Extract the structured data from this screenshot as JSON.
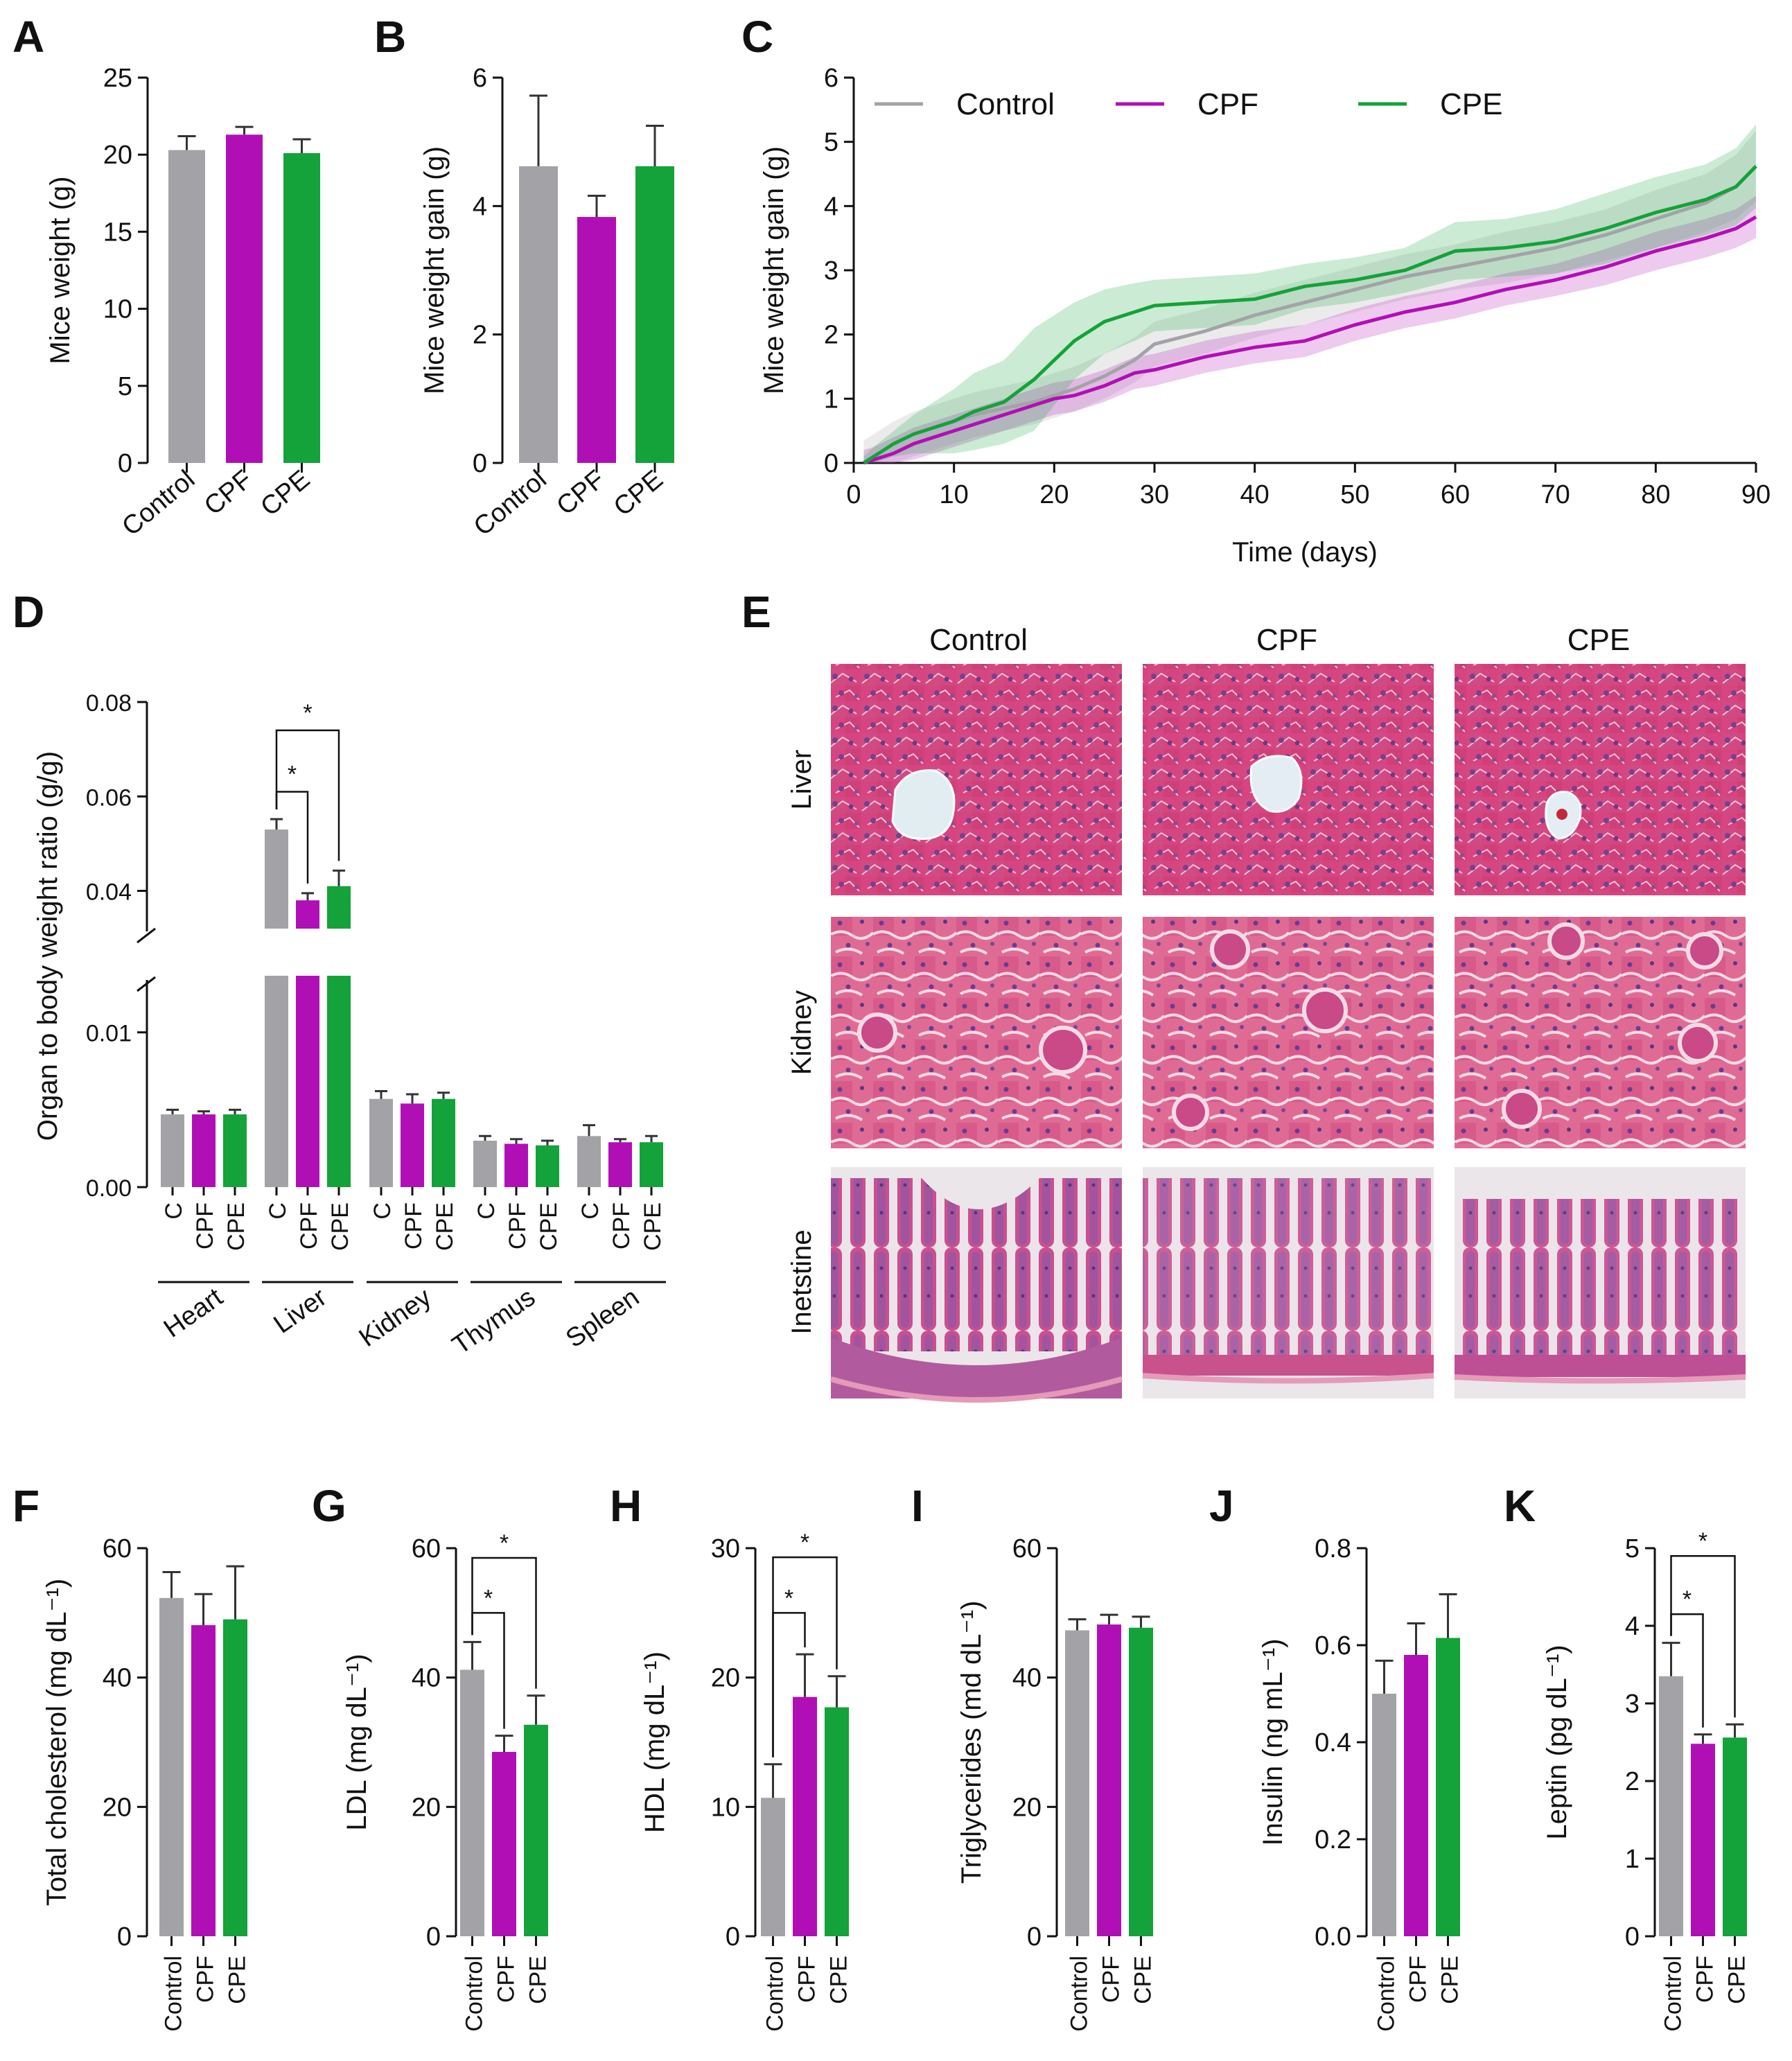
{
  "colors": {
    "control": "#a3a3a7",
    "cpf": "#b10fb6",
    "cpe": "#14a23a",
    "axis": "#111111"
  },
  "groups": [
    "Control",
    "CPF",
    "CPE"
  ],
  "chart_data": [
    {
      "id": "A",
      "panel_label": "A",
      "type": "bar",
      "categories": [
        "Control",
        "CPF",
        "CPE"
      ],
      "values": [
        20.3,
        21.3,
        20.1
      ],
      "errors": [
        0.9,
        0.5,
        0.9
      ],
      "ylabel": "Mice weight (g)",
      "ylim": [
        0,
        25
      ],
      "yticks": [
        0,
        5,
        10,
        15,
        20,
        25
      ],
      "ytick_labels": [
        "0",
        "5",
        "10",
        "15",
        "20",
        "25"
      ]
    },
    {
      "id": "B",
      "panel_label": "B",
      "type": "bar",
      "categories": [
        "Control",
        "CPF",
        "CPE"
      ],
      "values": [
        4.62,
        3.83,
        4.62
      ],
      "errors": [
        1.1,
        0.33,
        0.63
      ],
      "ylabel": "Mice weight gain (g)",
      "ylim": [
        0,
        6
      ],
      "yticks": [
        0,
        2,
        4,
        6
      ],
      "ytick_labels": [
        "0",
        "2",
        "4",
        "6"
      ]
    },
    {
      "id": "C",
      "panel_label": "C",
      "type": "line",
      "xlabel": "Time (days)",
      "ylabel": "Mice weight gain (g)",
      "xlim": [
        0,
        90
      ],
      "ylim": [
        0,
        6
      ],
      "xticks": [
        0,
        10,
        20,
        30,
        40,
        50,
        60,
        70,
        80,
        90
      ],
      "xtick_labels": [
        "0",
        "10",
        "20",
        "30",
        "40",
        "50",
        "60",
        "70",
        "80",
        "90"
      ],
      "yticks": [
        0,
        1,
        2,
        3,
        4,
        5,
        6
      ],
      "ytick_labels": [
        "0",
        "1",
        "2",
        "3",
        "4",
        "5",
        "6"
      ],
      "x": [
        1,
        2,
        4,
        6,
        8,
        10,
        12,
        15,
        18,
        20,
        22,
        25,
        28,
        30,
        35,
        40,
        45,
        50,
        55,
        60,
        65,
        70,
        75,
        80,
        85,
        88,
        90
      ],
      "series": [
        {
          "name": "Control",
          "color_key": "control",
          "values": [
            0,
            0.1,
            0.3,
            0.45,
            0.55,
            0.65,
            0.75,
            0.85,
            0.95,
            1.05,
            1.15,
            1.35,
            1.6,
            1.85,
            2.05,
            2.3,
            2.5,
            2.7,
            2.9,
            3.05,
            3.2,
            3.35,
            3.55,
            3.8,
            4.05,
            4.3,
            4.62
          ],
          "band": [
            0.35,
            0.35,
            0.35,
            0.35,
            0.35,
            0.35,
            0.35,
            0.35,
            0.35,
            0.35,
            0.35,
            0.35,
            0.35,
            0.35,
            0.35,
            0.35,
            0.35,
            0.35,
            0.35,
            0.35,
            0.4,
            0.4,
            0.4,
            0.45,
            0.45,
            0.5,
            0.55
          ]
        },
        {
          "name": "CPF",
          "color_key": "cpf",
          "values": [
            0,
            0.05,
            0.15,
            0.3,
            0.4,
            0.5,
            0.6,
            0.75,
            0.9,
            1.0,
            1.05,
            1.2,
            1.4,
            1.45,
            1.65,
            1.8,
            1.9,
            2.15,
            2.35,
            2.5,
            2.7,
            2.85,
            3.05,
            3.3,
            3.5,
            3.65,
            3.83
          ],
          "band": [
            0.2,
            0.2,
            0.25,
            0.25,
            0.25,
            0.25,
            0.25,
            0.25,
            0.25,
            0.25,
            0.25,
            0.25,
            0.25,
            0.25,
            0.25,
            0.25,
            0.25,
            0.25,
            0.25,
            0.25,
            0.25,
            0.25,
            0.28,
            0.3,
            0.3,
            0.3,
            0.33
          ]
        },
        {
          "name": "CPE",
          "color_key": "cpe",
          "values": [
            0,
            0.1,
            0.3,
            0.45,
            0.55,
            0.65,
            0.8,
            0.95,
            1.3,
            1.6,
            1.9,
            2.2,
            2.35,
            2.45,
            2.5,
            2.55,
            2.75,
            2.85,
            3.0,
            3.3,
            3.35,
            3.45,
            3.65,
            3.9,
            4.1,
            4.3,
            4.62
          ],
          "band": [
            0.1,
            0.15,
            0.2,
            0.3,
            0.4,
            0.5,
            0.6,
            0.65,
            0.8,
            0.7,
            0.6,
            0.5,
            0.45,
            0.4,
            0.4,
            0.4,
            0.35,
            0.35,
            0.35,
            0.45,
            0.45,
            0.5,
            0.55,
            0.55,
            0.55,
            0.6,
            0.65
          ]
        }
      ]
    },
    {
      "id": "D",
      "panel_label": "D",
      "type": "bar",
      "ylabel": "Organ to body weight ratio (g/g)",
      "broken_axis": [
        0.012,
        0.032
      ],
      "ylim": [
        0,
        0.08
      ],
      "yticks": [
        0.0,
        0.01,
        0.04,
        0.06,
        0.08
      ],
      "ytick_labels": [
        "0.00",
        "0.01",
        "0.04",
        "0.06",
        "0.08"
      ],
      "organs": [
        "Heart",
        "Liver",
        "Kidney",
        "Thymus",
        "Spleen"
      ],
      "bar_labels": [
        "C",
        "CPF",
        "CPE"
      ],
      "series": [
        {
          "name": "Control",
          "color_key": "control",
          "values": [
            0.0047,
            0.053,
            0.0057,
            0.003,
            0.0033
          ],
          "errors": [
            0.0003,
            0.0022,
            0.0005,
            0.0003,
            0.0007
          ]
        },
        {
          "name": "CPF",
          "color_key": "cpf",
          "values": [
            0.0047,
            0.038,
            0.0054,
            0.0028,
            0.0029
          ],
          "errors": [
            0.0002,
            0.0015,
            0.0006,
            0.0003,
            0.0002
          ]
        },
        {
          "name": "CPE",
          "color_key": "cpe",
          "values": [
            0.0047,
            0.041,
            0.0057,
            0.0027,
            0.0029
          ],
          "errors": [
            0.0003,
            0.0033,
            0.0004,
            0.0003,
            0.0004
          ]
        }
      ],
      "significance": [
        {
          "organ": "Liver",
          "from": 0,
          "to": 1,
          "y": 0.061,
          "label": "*"
        },
        {
          "organ": "Liver",
          "from": 0,
          "to": 2,
          "y": 0.074,
          "label": "*"
        }
      ]
    },
    {
      "id": "F",
      "panel_label": "F",
      "type": "bar",
      "categories": [
        "Control",
        "CPF",
        "CPE"
      ],
      "values": [
        52.3,
        48.1,
        49.0
      ],
      "errors": [
        4.0,
        4.8,
        8.2
      ],
      "ylabel": "Total cholesterol (mg dL⁻¹)",
      "ylim": [
        0,
        60
      ],
      "yticks": [
        0,
        20,
        40,
        60
      ],
      "ytick_labels": [
        "0",
        "20",
        "40",
        "60"
      ]
    },
    {
      "id": "G",
      "panel_label": "G",
      "type": "bar",
      "categories": [
        "Control",
        "CPF",
        "CPE"
      ],
      "values": [
        41.2,
        28.5,
        32.7
      ],
      "errors": [
        4.3,
        2.5,
        4.5
      ],
      "ylabel": "LDL (mg dL⁻¹)",
      "ylim": [
        0,
        60
      ],
      "yticks": [
        0,
        20,
        40,
        60
      ],
      "ytick_labels": [
        "0",
        "20",
        "40",
        "60"
      ],
      "significance": [
        {
          "from": 0,
          "to": 1,
          "y": 50,
          "label": "*"
        },
        {
          "from": 0,
          "to": 2,
          "y": 58.5,
          "label": "*"
        }
      ]
    },
    {
      "id": "H",
      "panel_label": "H",
      "type": "bar",
      "categories": [
        "Control",
        "CPF",
        "CPE"
      ],
      "values": [
        10.7,
        18.5,
        17.7
      ],
      "errors": [
        2.6,
        3.3,
        2.4
      ],
      "ylabel": "HDL (mg dL⁻¹)",
      "ylim": [
        0,
        30
      ],
      "yticks": [
        0,
        10,
        20,
        30
      ],
      "ytick_labels": [
        "0",
        "10",
        "20",
        "30"
      ],
      "significance": [
        {
          "from": 0,
          "to": 1,
          "y": 25,
          "label": "*"
        },
        {
          "from": 0,
          "to": 2,
          "y": 29.3,
          "label": "*"
        }
      ]
    },
    {
      "id": "I",
      "panel_label": "I",
      "type": "bar",
      "categories": [
        "Control",
        "CPF",
        "CPE"
      ],
      "values": [
        47.3,
        48.2,
        47.7
      ],
      "errors": [
        1.7,
        1.5,
        1.7
      ],
      "ylabel": "Triglycerides (md dL⁻¹)",
      "ylim": [
        0,
        60
      ],
      "yticks": [
        0,
        20,
        40,
        60
      ],
      "ytick_labels": [
        "0",
        "20",
        "40",
        "60"
      ]
    },
    {
      "id": "J",
      "panel_label": "J",
      "type": "bar",
      "categories": [
        "Control",
        "CPF",
        "CPE"
      ],
      "values": [
        0.5,
        0.58,
        0.615
      ],
      "errors": [
        0.068,
        0.065,
        0.09
      ],
      "ylabel": "Insulin (ng mL⁻¹)",
      "ylim": [
        0,
        0.8
      ],
      "yticks": [
        0,
        0.2,
        0.4,
        0.6,
        0.8
      ],
      "ytick_labels": [
        "0.0",
        "0.2",
        "0.4",
        "0.6",
        "0.8"
      ]
    },
    {
      "id": "K",
      "panel_label": "K",
      "type": "bar",
      "categories": [
        "Control",
        "CPF",
        "CPE"
      ],
      "values": [
        3.35,
        2.48,
        2.56
      ],
      "errors": [
        0.43,
        0.12,
        0.17
      ],
      "ylabel": "Leptin (pg dL⁻¹)",
      "ylim": [
        0,
        5
      ],
      "yticks": [
        0,
        1,
        2,
        3,
        4,
        5
      ],
      "ytick_labels": [
        "0",
        "1",
        "2",
        "3",
        "4",
        "5"
      ],
      "significance": [
        {
          "from": 0,
          "to": 1,
          "y": 4.15,
          "label": "*"
        },
        {
          "from": 0,
          "to": 2,
          "y": 4.9,
          "label": "*"
        }
      ]
    }
  ],
  "histology": {
    "panel_label": "E",
    "columns": [
      "Control",
      "CPF",
      "CPE"
    ],
    "rows": [
      "Liver",
      "Kidney",
      "Inetstine"
    ]
  }
}
